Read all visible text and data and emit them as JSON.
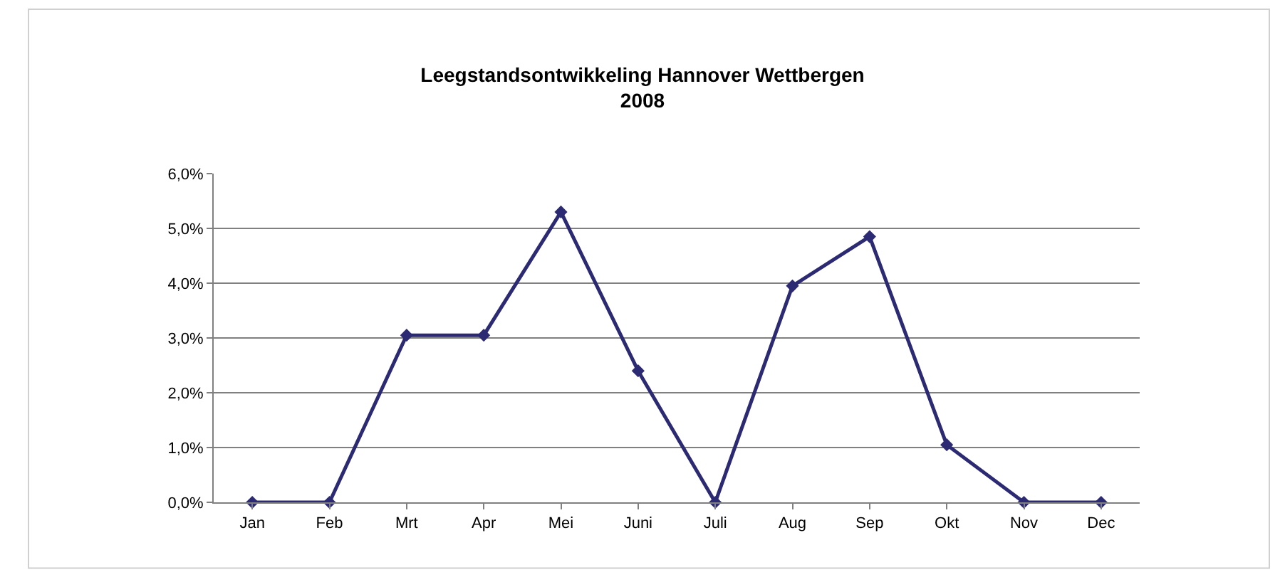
{
  "chart_data": {
    "type": "line",
    "title": "Leegstandsontwikkeling Hannover Wettbergen\n2008",
    "categories": [
      "Jan",
      "Feb",
      "Mrt",
      "Apr",
      "Mei",
      "Juni",
      "Juli",
      "Aug",
      "Sep",
      "Okt",
      "Nov",
      "Dec"
    ],
    "series": [
      {
        "color": "#2b2a72",
        "values": [
          0,
          0,
          3.05,
          3.05,
          5.3,
          2.4,
          0,
          3.95,
          4.85,
          1.05,
          0,
          0
        ]
      }
    ],
    "ylim": [
      0,
      6
    ],
    "yticks": [
      {
        "value": 0,
        "label": "0,0%"
      },
      {
        "value": 1,
        "label": "1,0%"
      },
      {
        "value": 2,
        "label": "2,0%"
      },
      {
        "value": 3,
        "label": "3,0%"
      },
      {
        "value": 4,
        "label": "4,0%"
      },
      {
        "value": 5,
        "label": "5,0%"
      },
      {
        "value": 6,
        "label": "6,0%"
      }
    ],
    "grid": "y",
    "legend": false,
    "marker": "diamond",
    "line_style": "solid"
  }
}
